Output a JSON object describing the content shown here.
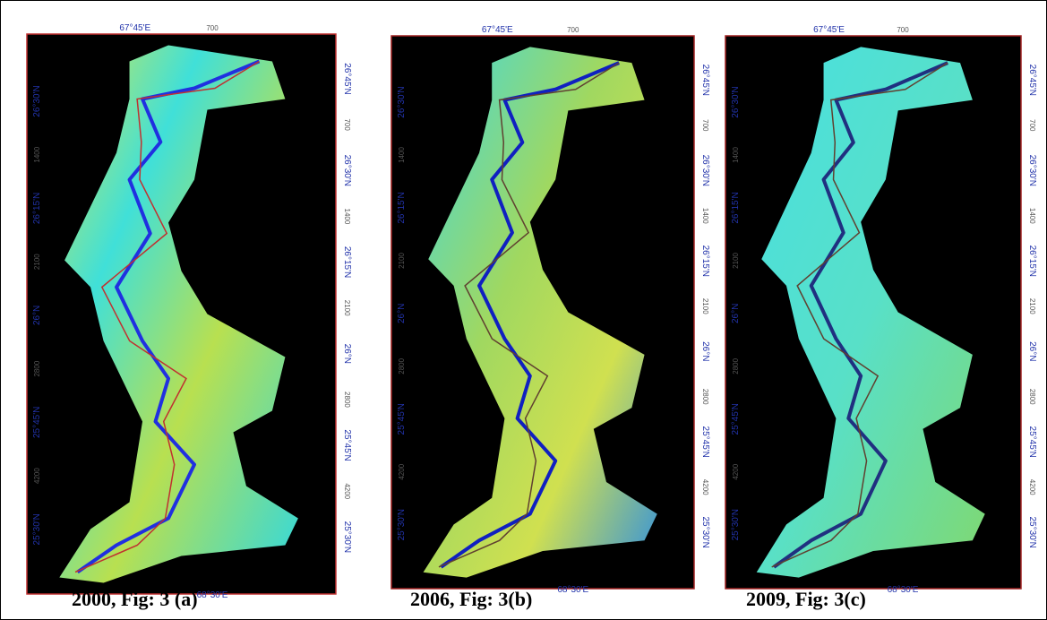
{
  "panels": [
    {
      "caption": "2000, Fig: 3 (a)",
      "top_labels": [
        "67°45'E",
        "700"
      ],
      "bottom_label": "68°30'E",
      "left_labels": [
        "26°30'N",
        "1400",
        "26°15'N",
        "2100",
        "26°N",
        "2800",
        "25°45'N",
        "4200",
        "25°30'N"
      ],
      "right_labels": [
        "26°45'N",
        "700",
        "26°30'N",
        "1400",
        "26°15'N",
        "2100",
        "26°N",
        "2800",
        "25°45'N",
        "4200",
        "25°30'N"
      ]
    },
    {
      "caption": "2006, Fig: 3(b)",
      "top_labels": [
        "67°45'E",
        "700"
      ],
      "bottom_label": "68°30'E",
      "left_labels": [
        "26°30'N",
        "1400",
        "26°15'N",
        "2100",
        "26°N",
        "2800",
        "25°45'N",
        "4200",
        "25°30'N"
      ],
      "right_labels": [
        "26°45'N",
        "700",
        "26°30'N",
        "1400",
        "26°15'N",
        "2100",
        "26°N",
        "2800",
        "25°45'N",
        "4200",
        "25°30'N"
      ]
    },
    {
      "caption": "2009, Fig: 3(c)",
      "top_labels": [
        "67°45'E",
        "700"
      ],
      "bottom_label": "68°30'E",
      "left_labels": [
        "26°30'N",
        "1400",
        "26°15'N",
        "2100",
        "26°N",
        "2800",
        "25°45'N",
        "4200",
        "25°30'N"
      ],
      "right_labels": [
        "26°45'N",
        "700",
        "26°30'N",
        "1400",
        "26°15'N",
        "2100",
        "26°N",
        "2800",
        "25°45'N",
        "4200",
        "25°30'N"
      ]
    }
  ]
}
